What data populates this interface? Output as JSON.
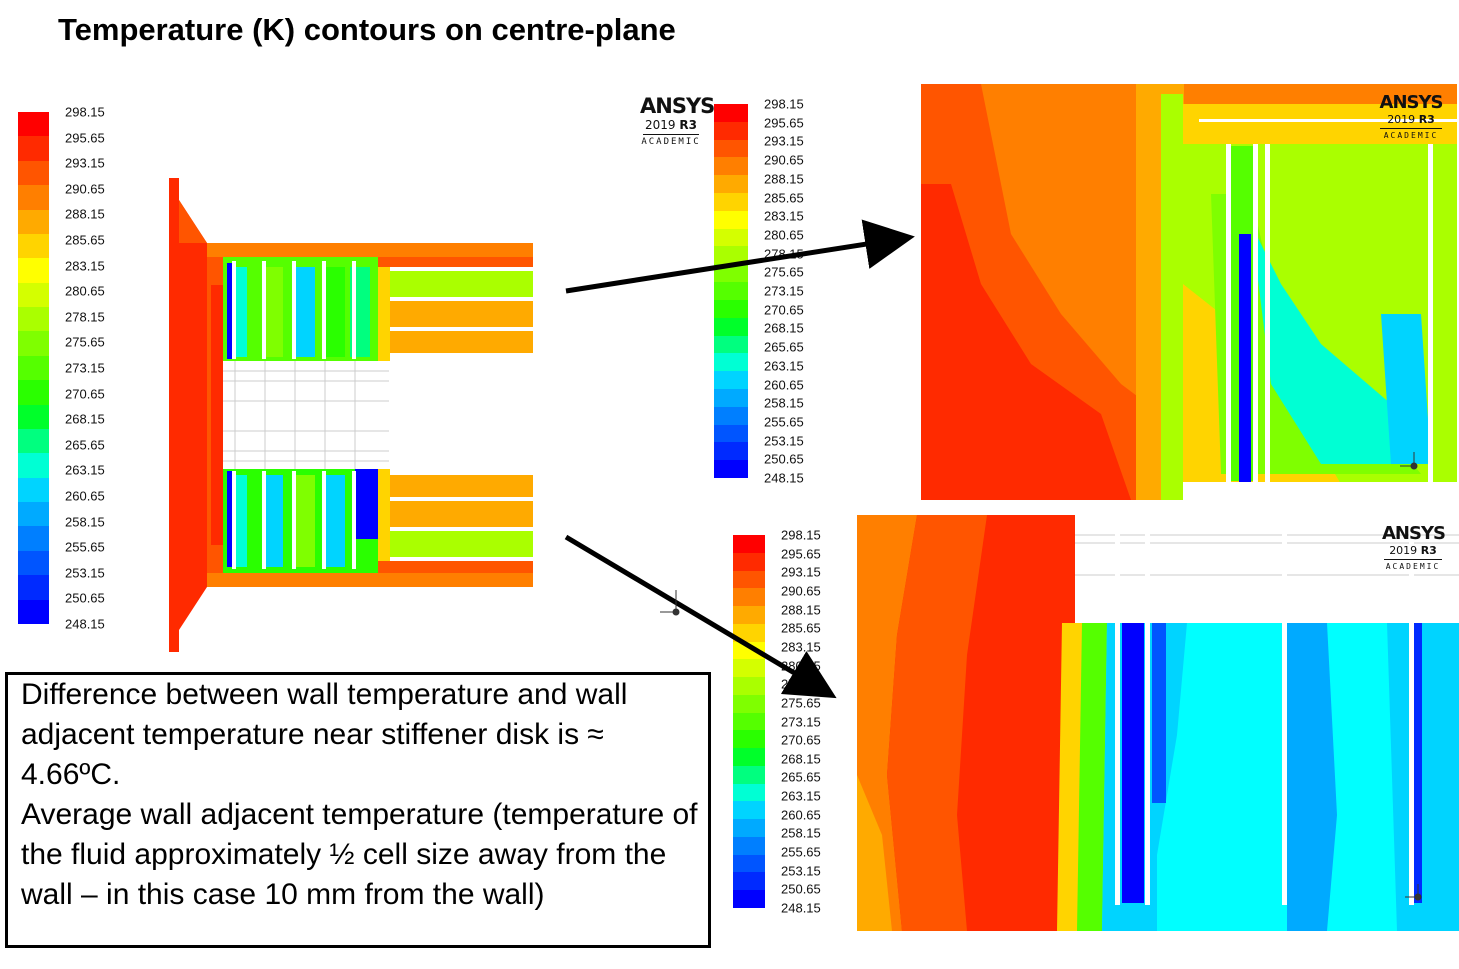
{
  "title": "Temperature (K) contours on centre-plane",
  "legend": {
    "labels": [
      "298.15",
      "295.65",
      "293.15",
      "290.65",
      "288.15",
      "285.65",
      "283.15",
      "280.65",
      "278.15",
      "275.65",
      "273.15",
      "270.65",
      "268.15",
      "265.65",
      "263.15",
      "260.65",
      "258.15",
      "255.65",
      "253.15",
      "250.65",
      "248.15"
    ],
    "colors": [
      "#ff0000",
      "#ff2a00",
      "#ff5500",
      "#ff7f00",
      "#ffaa00",
      "#ffd400",
      "#ffff00",
      "#d4ff00",
      "#aaff00",
      "#7fff00",
      "#55ff00",
      "#2aff00",
      "#00ff2a",
      "#00ff7f",
      "#00ffd4",
      "#00d4ff",
      "#00aaff",
      "#007fff",
      "#0055ff",
      "#002aff",
      "#0000ff"
    ]
  },
  "logo": {
    "brand": "ANSYS",
    "version_prefix": "2019",
    "version_suffix": "R3",
    "edition": "ACADEMIC"
  },
  "note": {
    "line1": "Difference between wall temperature and wall adjacent temperature near stiffener disk is ≈ 4.66ºC.",
    "line2": "Average wall adjacent temperature (temperature of the fluid approximately ½ cell size away from the wall – in this case 10 mm from the wall)"
  }
}
